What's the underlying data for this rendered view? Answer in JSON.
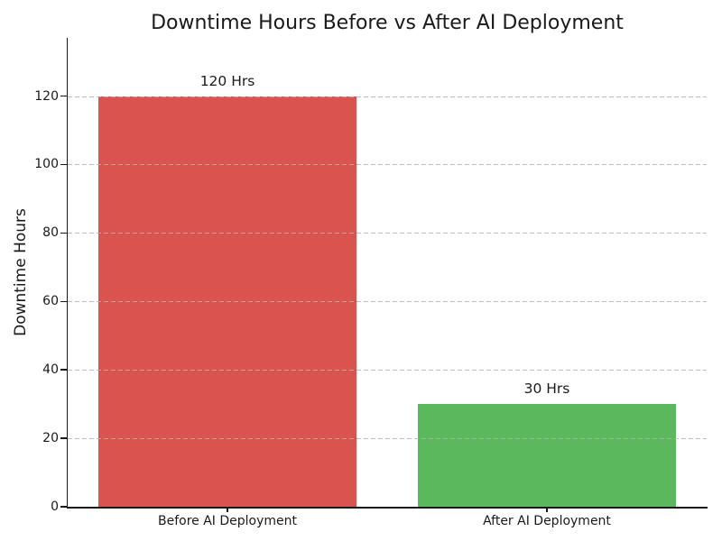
{
  "chart_data": {
    "type": "bar",
    "title": "Downtime Hours Before vs After AI Deployment",
    "xlabel": "",
    "ylabel": "Downtime Hours",
    "categories": [
      "Before AI Deployment",
      "After AI Deployment"
    ],
    "values": [
      120,
      30
    ],
    "bar_labels": [
      "120 Hrs",
      "30 Hrs"
    ],
    "bar_colors": [
      "#d9534f",
      "#5cb85c"
    ],
    "yticks": [
      0,
      20,
      40,
      60,
      80,
      100,
      120
    ],
    "ylim": [
      0,
      137
    ],
    "grid": "horizontal dashed",
    "grid_color": "#b2b2b2",
    "legend_position": "none",
    "background_color": "#ffffff",
    "text_color": "#1a1a1a"
  }
}
